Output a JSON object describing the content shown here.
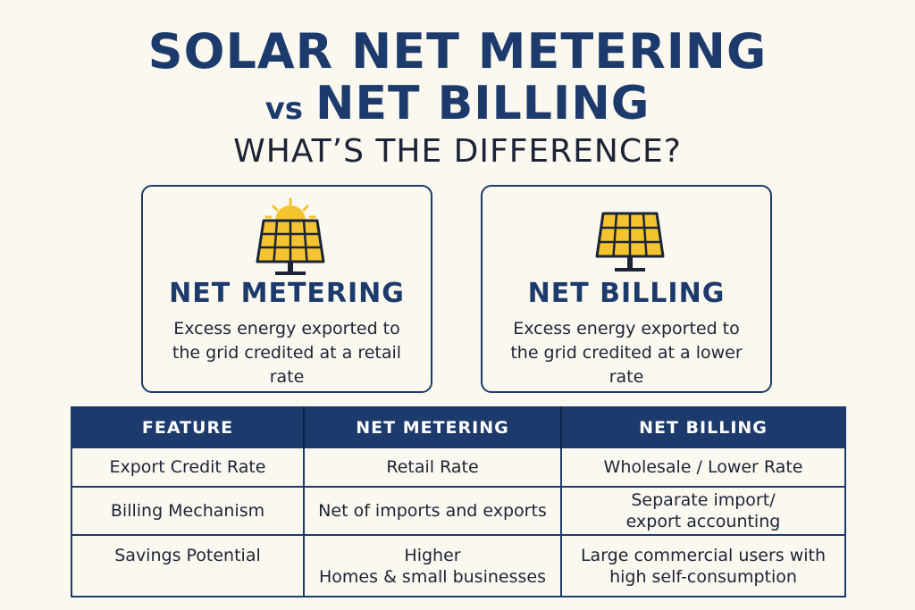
{
  "header": {
    "title_line1": "SOLAR NET METERING",
    "title_vs": "vs",
    "title_line2": "NET BILLING",
    "subtitle": "WHAT’S THE DIFFERENCE?"
  },
  "cards": [
    {
      "title": "NET METERING",
      "description": "Excess energy exported to the grid credited at a retail rate",
      "icon": "solar-panel-with-sun-icon"
    },
    {
      "title": "NET BILLING",
      "description": "Excess energy exported to the grid credited at a lower rate",
      "icon": "solar-panel-icon"
    }
  ],
  "table": {
    "headers": [
      "FEATURE",
      "NET METERING",
      "NET BILLING"
    ],
    "rows": [
      {
        "feature": "Export Credit Rate",
        "net_metering": [
          "Retail Rate"
        ],
        "net_billing": [
          "Wholesale / Lower Rate"
        ]
      },
      {
        "feature": "Billing Mechanism",
        "net_metering": [
          "Net of imports and exports"
        ],
        "net_billing": [
          "Separate import/",
          "export accounting"
        ]
      },
      {
        "feature": "Savings Potential",
        "net_metering": [
          "Higher",
          "Homes & small businesses"
        ],
        "net_billing": [
          "Large commercial users with",
          "high self-consumption"
        ]
      }
    ]
  },
  "colors": {
    "navy": "#1d3a6c",
    "panel_yellow": "#f4c430",
    "background": "#fbf8f0"
  }
}
